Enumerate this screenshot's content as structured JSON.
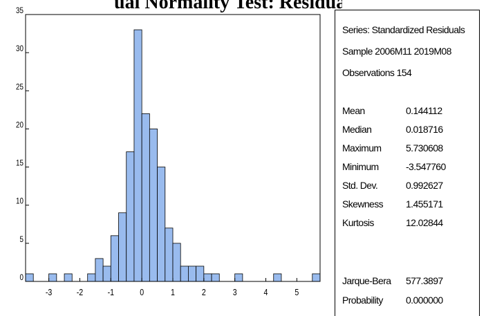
{
  "title": "ual Normality Test: Residuals Histogram",
  "stats": {
    "series_label": "Series: Standardized Residuals",
    "sample_label": "Sample 2006M11 2019M08",
    "observations_label": "Observations 154",
    "rows": [
      {
        "label": "Mean",
        "value": "0.144112"
      },
      {
        "label": "Median",
        "value": "0.018716"
      },
      {
        "label": "Maximum",
        "value": "5.730608"
      },
      {
        "label": "Minimum",
        "value": "-3.547760"
      },
      {
        "label": "Std. Dev.",
        "value": "0.992627"
      },
      {
        "label": "Skewness",
        "value": "1.455171"
      },
      {
        "label": "Kurtosis",
        "value": "12.02844"
      }
    ],
    "test_rows": [
      {
        "label": "Jarque-Bera",
        "value": "577.3897"
      },
      {
        "label": "Probability",
        "value": "0.000000"
      }
    ]
  },
  "chart_data": {
    "type": "bar",
    "bin_width": 0.25,
    "bin_starts": [
      -3.75,
      -3.5,
      -3.25,
      -3.0,
      -2.75,
      -2.5,
      -2.25,
      -2.0,
      -1.75,
      -1.5,
      -1.25,
      -1.0,
      -0.75,
      -0.5,
      -0.25,
      0.0,
      0.25,
      0.5,
      0.75,
      1.0,
      1.25,
      1.5,
      1.75,
      2.0,
      2.25,
      2.5,
      2.75,
      3.0,
      3.25,
      3.5,
      3.75,
      4.0,
      4.25,
      4.5,
      4.75,
      5.0,
      5.25,
      5.5
    ],
    "values": [
      1,
      0,
      0,
      1,
      0,
      1,
      0,
      0,
      1,
      3,
      2,
      6,
      9,
      17,
      33,
      22,
      20,
      15,
      7,
      5,
      2,
      2,
      2,
      1,
      1,
      0,
      0,
      1,
      0,
      0,
      0,
      0,
      1,
      0,
      0,
      0,
      0,
      1
    ],
    "xlim": [
      -3.75,
      5.75
    ],
    "ylim": [
      0,
      35
    ],
    "x_ticks": [
      -3,
      -2,
      -1,
      0,
      1,
      2,
      3,
      4,
      5
    ],
    "x_tick_labels": [
      "-3",
      "-2",
      "-1",
      "0",
      "1",
      "2",
      "3",
      "4",
      "5"
    ],
    "y_ticks": [
      0,
      5,
      10,
      15,
      20,
      25,
      30,
      35
    ],
    "y_tick_labels": [
      "0",
      "5",
      "10",
      "15",
      "20",
      "25",
      "30",
      "35"
    ],
    "bar_color": "#99BBEE",
    "bar_edge_color": "#000000",
    "xlabel": "",
    "ylabel": "",
    "legend": "none",
    "grid": false
  }
}
